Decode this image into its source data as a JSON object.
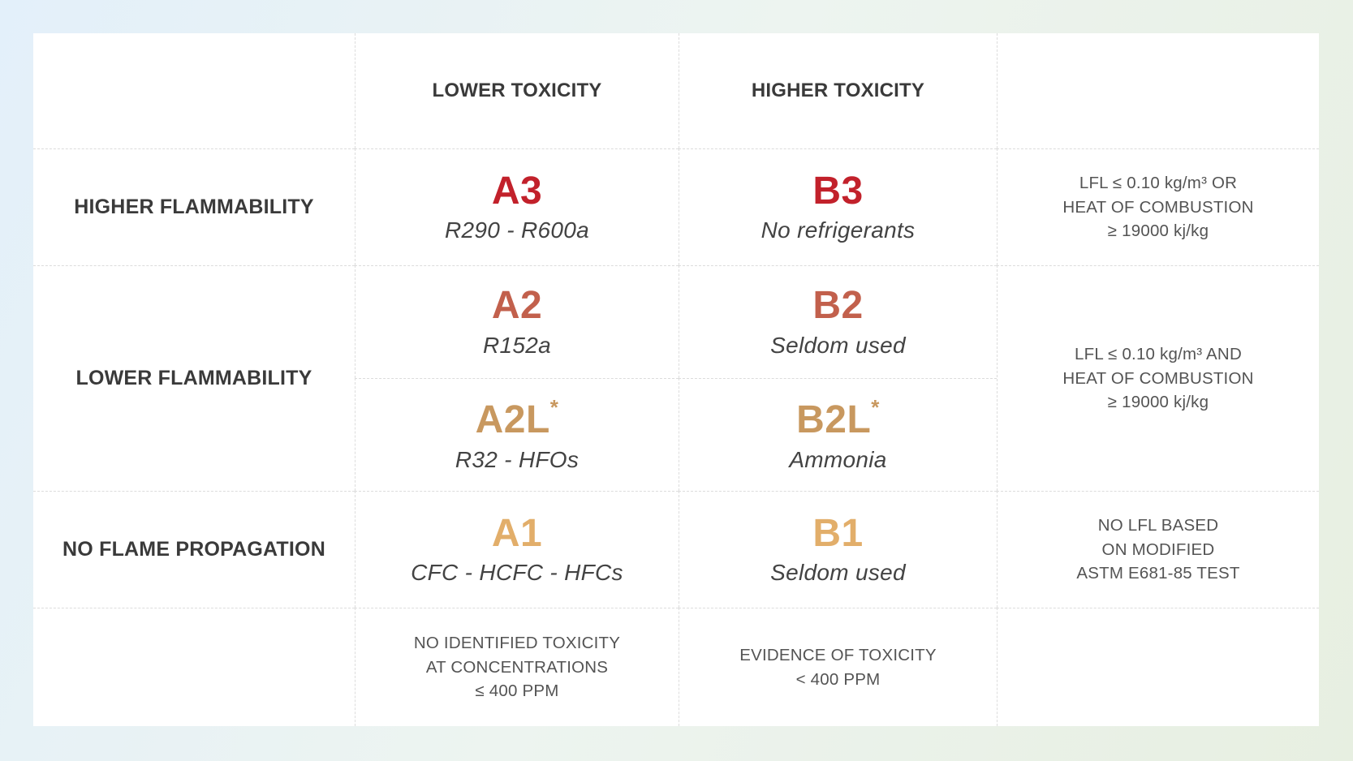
{
  "palette": {
    "background_top_left": "#e3f0fa",
    "background_bottom_right": "#e7efe1",
    "panel": "#ffffff",
    "grid_line": "#dcdcdc",
    "heading_text": "#3a3a3a",
    "note_text": "#545454",
    "class_red": "#c2212b",
    "class_terracotta": "#c2604c",
    "class_camel": "#c8985f",
    "class_gold": "#e2ae6a"
  },
  "matrix": {
    "col_headers": {
      "lower_toxicity": "LOWER TOXICITY",
      "higher_toxicity": "HIGHER TOXICITY"
    },
    "row_headers": {
      "higher_flammability": "HIGHER FLAMMABILITY",
      "lower_flammability": "LOWER FLAMMABILITY",
      "no_flame_propagation": "NO FLAME PROPAGATION"
    },
    "cells": {
      "a3": {
        "code": "A3",
        "sub": "R290 - R600a"
      },
      "b3": {
        "code": "B3",
        "sub": "No refrigerants"
      },
      "a2": {
        "code": "A2",
        "sub": "R152a"
      },
      "b2": {
        "code": "B2",
        "sub": "Seldom used"
      },
      "a2l": {
        "code": "A2L",
        "asterisk": "*",
        "sub": "R32 - HFOs"
      },
      "b2l": {
        "code": "B2L",
        "asterisk": "*",
        "sub": "Ammonia"
      },
      "a1": {
        "code": "A1",
        "sub": "CFC - HCFC - HFCs"
      },
      "b1": {
        "code": "B1",
        "sub": "Seldom used"
      }
    },
    "flammability_notes": {
      "higher": "LFL ≤ 0.10 kg/m³ OR\nHEAT OF COMBUSTION\n≥ 19000 kj/kg",
      "lower": "LFL ≤ 0.10 kg/m³ AND\nHEAT OF COMBUSTION\n≥ 19000 kj/kg",
      "no_flame": "NO LFL BASED\nON MODIFIED\nASTM E681-85 TEST"
    },
    "toxicity_notes": {
      "lower": "NO IDENTIFIED TOXICITY\nAT CONCENTRATIONS\n≤ 400 PPM",
      "higher": "EVIDENCE OF TOXICITY\n< 400 PPM"
    }
  }
}
